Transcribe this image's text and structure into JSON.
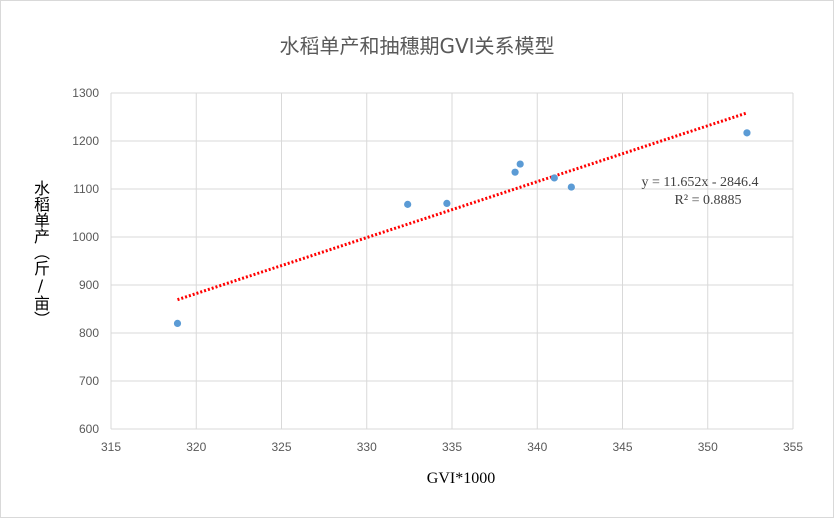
{
  "chart_data": {
    "type": "scatter",
    "title": "水稻单产和抽穗期GVI关系模型",
    "xlabel": "GVI*1000",
    "ylabel": "水稻单产（斤/亩）",
    "xlim": [
      315,
      355
    ],
    "ylim": [
      600,
      1300
    ],
    "xticks": [
      "315",
      "320",
      "325",
      "330",
      "335",
      "340",
      "345",
      "350",
      "355"
    ],
    "yticks": [
      "600",
      "700",
      "800",
      "900",
      "1000",
      "1100",
      "1200",
      "1300"
    ],
    "grid": true,
    "points": [
      {
        "x": 318.9,
        "y": 820
      },
      {
        "x": 332.4,
        "y": 1068
      },
      {
        "x": 334.7,
        "y": 1070
      },
      {
        "x": 338.7,
        "y": 1135
      },
      {
        "x": 339.0,
        "y": 1152
      },
      {
        "x": 341.0,
        "y": 1123
      },
      {
        "x": 342.0,
        "y": 1104
      },
      {
        "x": 352.3,
        "y": 1217
      }
    ],
    "trendline": {
      "type": "linear",
      "slope": 11.652,
      "intercept": -2846.4,
      "x_range": [
        318.9,
        352.3
      ],
      "color": "#ff0000",
      "style": "dotted"
    },
    "annotations": [
      "y = 11.652x - 2846.4",
      "R² = 0.8885"
    ],
    "point_color": "#5b9bd5",
    "grid_color": "#d9d9d9"
  }
}
